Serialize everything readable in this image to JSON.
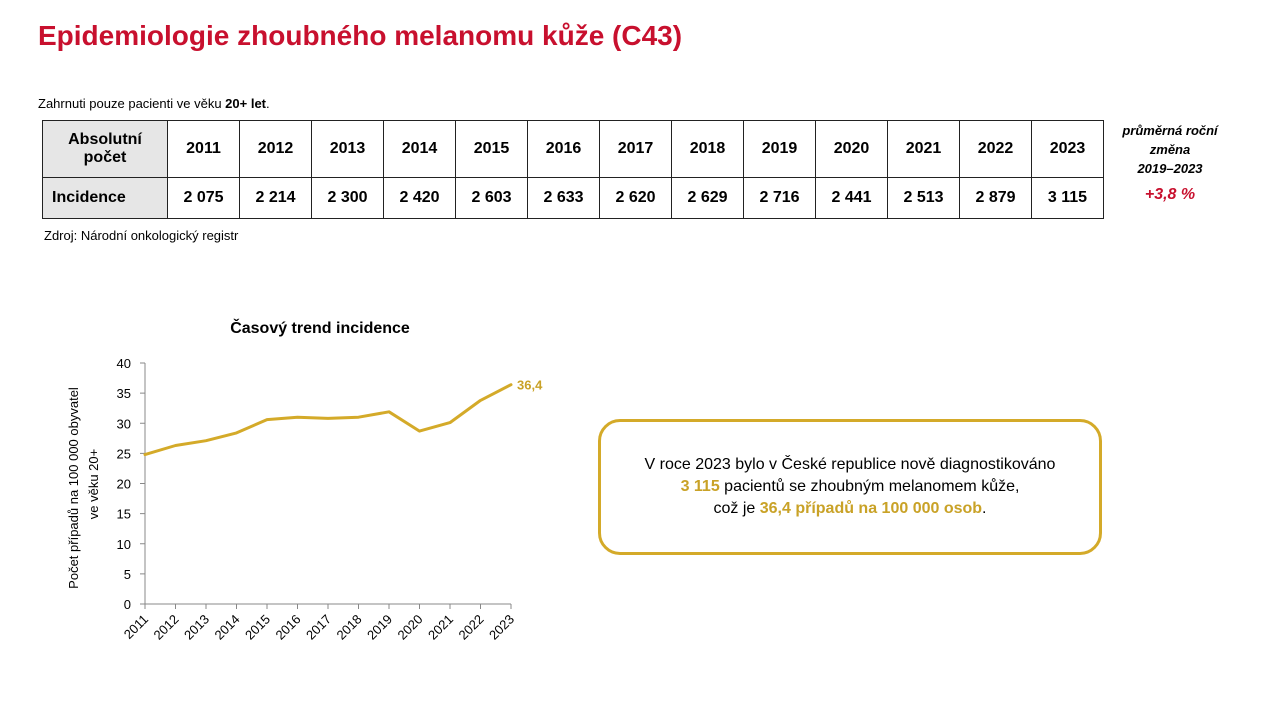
{
  "page": {
    "title": "Epidemiologie zhoubného melanomu kůže (C43)",
    "note_prefix": "Zahrnuti pouze pacienti ve věku ",
    "note_bold": "20+ let",
    "note_suffix": ".",
    "source": "Zdroj: Národní onkologický registr"
  },
  "table": {
    "header_label_line1": "Absolutní",
    "header_label_line2": "počet",
    "years": [
      "2011",
      "2012",
      "2013",
      "2014",
      "2015",
      "2016",
      "2017",
      "2018",
      "2019",
      "2020",
      "2021",
      "2022",
      "2023"
    ],
    "row_label": "Incidence",
    "values": [
      "2 075",
      "2 214",
      "2 300",
      "2 420",
      "2 603",
      "2 633",
      "2 620",
      "2 629",
      "2 716",
      "2 441",
      "2 513",
      "2 879",
      "3 115"
    ]
  },
  "avg_change": {
    "line1": "průměrná roční",
    "line2": "změna",
    "line3": "2019–2023",
    "value": "+3,8 %"
  },
  "chart": {
    "title": "Časový trend incidence",
    "ylabel_line1": "Počet případů na 100 000 obyvatel",
    "ylabel_line2": "ve věku 20+",
    "end_label": "36,4"
  },
  "chart_data": {
    "type": "line",
    "title": "Časový trend incidence",
    "xlabel": "",
    "ylabel": "Počet případů na 100 000 obyvatel ve věku 20+",
    "x": [
      "2011",
      "2012",
      "2013",
      "2014",
      "2015",
      "2016",
      "2017",
      "2018",
      "2019",
      "2020",
      "2021",
      "2022",
      "2023"
    ],
    "series": [
      {
        "values": [
          24.8,
          26.3,
          27.1,
          28.4,
          30.6,
          31.0,
          30.8,
          31.0,
          31.9,
          28.7,
          30.1,
          33.8,
          36.4
        ]
      }
    ],
    "yticks": [
      "0",
      "5",
      "10",
      "15",
      "20",
      "25",
      "30",
      "35",
      "40"
    ],
    "ylim": [
      0,
      40
    ],
    "grid": false,
    "line_color": "#d4aa29",
    "data_labels": [
      "36,4"
    ]
  },
  "infobox": {
    "line1": "V roce 2023 bylo v České republice nově diagnostikováno",
    "highlight1": "3 115",
    "line2_rest": " pacientů se zhoubným melanomem kůže,",
    "line3_prefix": "což je ",
    "highlight2": "36,4 případů na 100 000 osob",
    "line3_suffix": "."
  },
  "colors": {
    "title": "#c8102e",
    "accent_gold": "#d4aa29",
    "header_bg": "#e6e6e6",
    "change_value": "#c8102e"
  }
}
